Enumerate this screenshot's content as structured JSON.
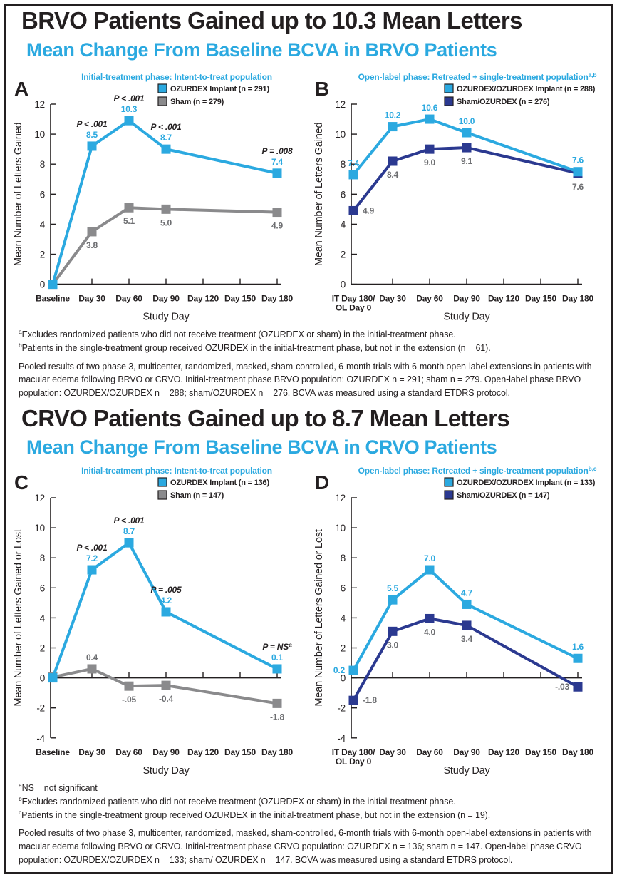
{
  "colors": {
    "light_blue": "#2BA9E0",
    "navy": "#2B3990",
    "gray": "#8A8A8C",
    "gray_label": "#6D6E71",
    "black": "#231F20"
  },
  "sections": [
    {
      "title": "BRVO Patients Gained up to 10.3 Mean Letters",
      "subtitle": "Mean Change From Baseline BCVA in BRVO Patients",
      "footnote_lines": [
        {
          "sup": "a",
          "text": "Excludes randomized patients who did not receive treatment (OZURDEX or sham) in the initial-treatment phase."
        },
        {
          "sup": "b",
          "text": "Patients in the single-treatment group received OZURDEX in the initial-treatment phase, but not in the extension (n = 61)."
        }
      ],
      "footnote_paragraph": "Pooled results of two phase 3, multicenter, randomized, masked, sham-controlled, 6-month trials with 6-month open-label extensions in patients with macular edema following BRVO or CRVO. Initial-treatment phase BRVO population: OZURDEX n = 291; sham n = 279. Open-label phase BRVO population: OZURDEX/OZURDEX n = 288; sham/OZURDEX n = 276. BCVA was measured using a standard ETDRS protocol."
    },
    {
      "title": "CRVO Patients Gained up to 8.7 Mean Letters",
      "subtitle": "Mean Change From Baseline BCVA in CRVO Patients",
      "footnote_lines": [
        {
          "sup": "a",
          "text": "NS = not significant"
        },
        {
          "sup": "b",
          "text": "Excludes randomized patients who did not receive treatment (OZURDEX or sham) in the initial-treatment phase."
        },
        {
          "sup": "c",
          "text": "Patients in the single-treatment group received OZURDEX in the initial-treatment phase, but not in the extension (n = 19)."
        }
      ],
      "footnote_paragraph": "Pooled results of two phase 3, multicenter, randomized, masked, sham-controlled, 6-month trials with 6-month open-label extensions in patients with macular edema following BRVO or CRVO. Initial-treatment phase CRVO population: OZURDEX n = 136; sham n = 147. Open-label phase CRVO population: OZURDEX/OZURDEX n = 133; sham/ OZURDEX n = 147. BCVA was measured using a standard ETDRS protocol."
    }
  ],
  "chart_data": [
    {
      "panel_label": "A",
      "type": "line",
      "title": "Initial-treatment phase: Intent-to-treat population",
      "title_sup": "",
      "xlabel": "Study Day",
      "ylabel": "Mean Number of Letters Gained",
      "ylim": [
        0,
        12
      ],
      "ystep": 2,
      "grid": false,
      "legend_position": "top-right",
      "categories": [
        "Baseline",
        "Day 30",
        "Day 60",
        "Day 90",
        "Day 120",
        "Day 150",
        "Day 180"
      ],
      "series": [
        {
          "name": "OZURDEX Implant (n = 291)",
          "color": "#2BA9E0",
          "label_color": "#2BA9E0",
          "points": [
            {
              "xi": 0,
              "value": 0,
              "plot": 0,
              "label": "",
              "side": "",
              "p": ""
            },
            {
              "xi": 1,
              "value": 8.5,
              "plot": 9.2,
              "label": "8.5",
              "side": "above",
              "p": "P < .001"
            },
            {
              "xi": 2,
              "value": 10.3,
              "plot": 10.9,
              "label": "10.3",
              "side": "above",
              "p": "P < .001"
            },
            {
              "xi": 3,
              "value": 8.7,
              "plot": 9.0,
              "label": "8.7",
              "side": "above",
              "p": "P < .001"
            },
            {
              "xi": 6,
              "value": 7.4,
              "plot": 7.4,
              "label": "7.4",
              "side": "above",
              "p": "P = .008"
            }
          ]
        },
        {
          "name": "Sham (n = 279)",
          "color": "#8A8A8C",
          "label_color": "#6D6E71",
          "points": [
            {
              "xi": 0,
              "value": 0,
              "plot": 0,
              "label": "",
              "side": "",
              "p": ""
            },
            {
              "xi": 1,
              "value": 3.8,
              "plot": 3.5,
              "label": "3.8",
              "side": "below",
              "p": ""
            },
            {
              "xi": 2,
              "value": 5.1,
              "plot": 5.1,
              "label": "5.1",
              "side": "below",
              "p": ""
            },
            {
              "xi": 3,
              "value": 5.0,
              "plot": 5.0,
              "label": "5.0",
              "side": "below",
              "p": ""
            },
            {
              "xi": 6,
              "value": 4.9,
              "plot": 4.8,
              "label": "4.9",
              "side": "below",
              "p": ""
            }
          ]
        }
      ]
    },
    {
      "panel_label": "B",
      "type": "line",
      "title": "Open-label phase: Retreated + single-treatment population",
      "title_sup": "a,b",
      "xlabel": "Study Day",
      "ylabel": "Mean Number of Letters Gained",
      "ylim": [
        0,
        12
      ],
      "ystep": 2,
      "grid": false,
      "legend_position": "top-right",
      "categories": [
        "IT Day 180/|OL Day 0",
        "Day 30",
        "Day 60",
        "Day 90",
        "Day 120",
        "Day 150",
        "Day 180"
      ],
      "series": [
        {
          "name": "OZURDEX/OZURDEX Implant (n = 288)",
          "color": "#2BA9E0",
          "label_color": "#2BA9E0",
          "points": [
            {
              "xi": 0,
              "value": 7.4,
              "plot": 7.3,
              "label": "7.4",
              "side": "above",
              "p": ""
            },
            {
              "xi": 1,
              "value": 10.2,
              "plot": 10.5,
              "label": "10.2",
              "side": "above",
              "p": ""
            },
            {
              "xi": 2,
              "value": 10.6,
              "plot": 11.0,
              "label": "10.6",
              "side": "above",
              "p": ""
            },
            {
              "xi": 3,
              "value": 10.0,
              "plot": 10.1,
              "label": "10.0",
              "side": "above",
              "p": ""
            },
            {
              "xi": 6,
              "value": 7.6,
              "plot": 7.5,
              "label": "7.6",
              "side": "above",
              "p": ""
            }
          ]
        },
        {
          "name": "Sham/OZURDEX (n = 276)",
          "color": "#2B3990",
          "label_color": "#6D6E71",
          "points": [
            {
              "xi": 0,
              "value": 4.9,
              "plot": 4.9,
              "label": "4.9",
              "side": "right",
              "p": ""
            },
            {
              "xi": 1,
              "value": 8.4,
              "plot": 8.2,
              "label": "8.4",
              "side": "below",
              "p": ""
            },
            {
              "xi": 2,
              "value": 9.0,
              "plot": 9.0,
              "label": "9.0",
              "side": "below",
              "p": ""
            },
            {
              "xi": 3,
              "value": 9.1,
              "plot": 9.1,
              "label": "9.1",
              "side": "below",
              "p": ""
            },
            {
              "xi": 6,
              "value": 7.6,
              "plot": 7.4,
              "label": "7.6",
              "side": "below",
              "p": ""
            }
          ]
        }
      ]
    },
    {
      "panel_label": "C",
      "type": "line",
      "title": "Initial-treatment phase: Intent-to-treat population",
      "title_sup": "",
      "xlabel": "Study Day",
      "ylabel": "Mean Number of Letters Gained or Lost",
      "ylim": [
        -4,
        12
      ],
      "ystep": 2,
      "grid": false,
      "legend_position": "top-right",
      "categories": [
        "Baseline",
        "Day 30",
        "Day 60",
        "Day 90",
        "Day 120",
        "Day 150",
        "Day 180"
      ],
      "series": [
        {
          "name": "OZURDEX Implant (n = 136)",
          "color": "#2BA9E0",
          "label_color": "#2BA9E0",
          "points": [
            {
              "xi": 0,
              "value": 0,
              "plot": 0,
              "label": "",
              "side": "",
              "p": ""
            },
            {
              "xi": 1,
              "value": 7.2,
              "plot": 7.2,
              "label": "7.2",
              "side": "above",
              "p": "P < .001"
            },
            {
              "xi": 2,
              "value": 8.7,
              "plot": 9.0,
              "label": "8.7",
              "side": "above",
              "p": "P < .001"
            },
            {
              "xi": 3,
              "value": 4.2,
              "plot": 4.4,
              "label": "4.2",
              "side": "above",
              "p": "P = .005"
            },
            {
              "xi": 6,
              "value": 0.1,
              "plot": 0.6,
              "label": "0.1",
              "side": "above",
              "p": "P = NS",
              "p_sup": "a"
            }
          ]
        },
        {
          "name": "Sham (n = 147)",
          "color": "#8A8A8C",
          "label_color": "#6D6E71",
          "points": [
            {
              "xi": 0,
              "value": 0,
              "plot": 0.05,
              "label": "",
              "side": "",
              "p": ""
            },
            {
              "xi": 1,
              "value": 0.4,
              "plot": 0.6,
              "label": "0.4",
              "side": "above",
              "p": ""
            },
            {
              "xi": 2,
              "value": -0.05,
              "plot": -0.55,
              "label": "-.05",
              "side": "below",
              "p": ""
            },
            {
              "xi": 3,
              "value": -0.4,
              "plot": -0.5,
              "label": "-0.4",
              "side": "below",
              "p": ""
            },
            {
              "xi": 6,
              "value": -1.8,
              "plot": -1.7,
              "label": "-1.8",
              "side": "below",
              "p": ""
            }
          ]
        }
      ]
    },
    {
      "panel_label": "D",
      "type": "line",
      "title": "Open-label phase: Retreated + single-treatment population",
      "title_sup": "b,c",
      "xlabel": "Study Day",
      "ylabel": "Mean Number of Letters Gained or Lost",
      "ylim": [
        -4,
        12
      ],
      "ystep": 2,
      "grid": false,
      "legend_position": "top-right",
      "categories": [
        "IT Day 180/|OL Day 0",
        "Day 30",
        "Day 60",
        "Day 90",
        "Day 120",
        "Day 150",
        "Day 180"
      ],
      "series": [
        {
          "name": "OZURDEX/OZURDEX Implant (n = 133)",
          "color": "#2BA9E0",
          "label_color": "#2BA9E0",
          "points": [
            {
              "xi": 0,
              "value": 0.2,
              "plot": 0.5,
              "label": "0.2",
              "side": "left",
              "p": ""
            },
            {
              "xi": 1,
              "value": 5.5,
              "plot": 5.2,
              "label": "5.5",
              "side": "above",
              "p": ""
            },
            {
              "xi": 2,
              "value": 7.0,
              "plot": 7.2,
              "label": "7.0",
              "side": "above",
              "p": ""
            },
            {
              "xi": 3,
              "value": 4.7,
              "plot": 4.9,
              "label": "4.7",
              "side": "above",
              "p": ""
            },
            {
              "xi": 6,
              "value": 1.6,
              "plot": 1.3,
              "label": "1.6",
              "side": "above",
              "p": ""
            }
          ]
        },
        {
          "name": "Sham/OZURDEX (n = 147)",
          "color": "#2B3990",
          "label_color": "#6D6E71",
          "points": [
            {
              "xi": 0,
              "value": -1.8,
              "plot": -1.5,
              "label": "-1.8",
              "side": "right",
              "p": ""
            },
            {
              "xi": 1,
              "value": 3.0,
              "plot": 3.1,
              "label": "3.0",
              "side": "below",
              "p": ""
            },
            {
              "xi": 2,
              "value": 4.0,
              "plot": 3.95,
              "label": "4.0",
              "side": "below",
              "p": ""
            },
            {
              "xi": 3,
              "value": 3.4,
              "plot": 3.5,
              "label": "3.4",
              "side": "below",
              "p": ""
            },
            {
              "xi": 6,
              "value": -0.03,
              "plot": -0.6,
              "label": "-.03",
              "side": "left",
              "p": ""
            }
          ]
        }
      ]
    }
  ]
}
